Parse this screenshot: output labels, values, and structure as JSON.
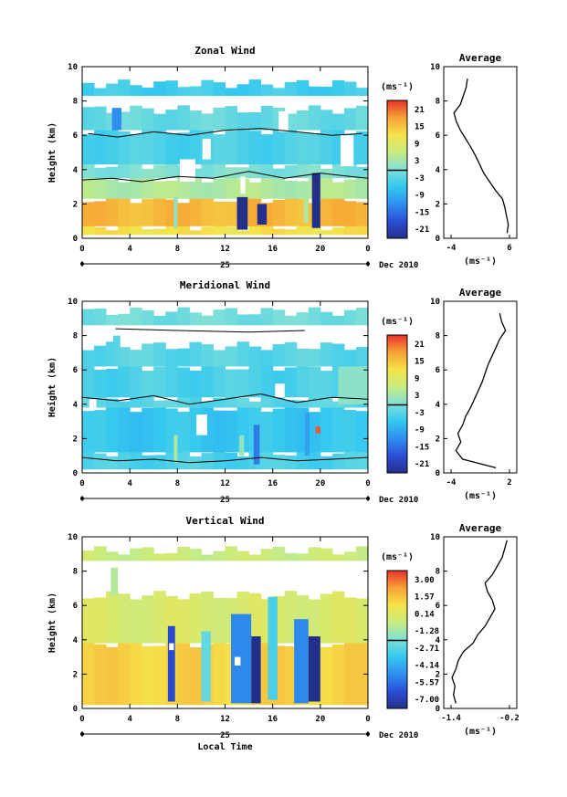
{
  "figure": {
    "date_label": "Dec 2010",
    "day_label": "25",
    "xlabel_bottom": "Local Time",
    "ylabel": "Height (km)",
    "x_ticks": [
      "0",
      "4",
      "8",
      "12",
      "16",
      "20",
      "0"
    ],
    "y_ticks": [
      "0",
      "2",
      "4",
      "6",
      "8",
      "10"
    ],
    "unit_label": "(ms⁻¹)",
    "avg_title": "Average"
  },
  "chart_data": [
    {
      "type": "heatmap",
      "title": "Zonal Wind",
      "xlabel": "",
      "ylabel": "Height (km)",
      "xlim": [
        0,
        24
      ],
      "ylim": [
        0,
        10
      ],
      "colorbar": {
        "unit": "(ms⁻¹)",
        "ticks": [
          "21",
          "15",
          "9",
          "3",
          "-3",
          "-9",
          "-15",
          "-21"
        ],
        "range": [
          -24,
          24
        ]
      },
      "layers": [
        {
          "y0": 0.2,
          "y1": 0.7,
          "value": 12
        },
        {
          "y0": 0.7,
          "y1": 2.3,
          "value": 16
        },
        {
          "y0": 2.3,
          "y1": 3.5,
          "value": 4
        },
        {
          "y0": 3.5,
          "y1": 4.3,
          "value": 0
        },
        {
          "y0": 4.3,
          "y1": 6.3,
          "value": -4
        },
        {
          "y0": 6.3,
          "y1": 7.5,
          "value": -2
        },
        {
          "y0": 8.3,
          "y1": 9.0,
          "value": -5
        }
      ],
      "features": [
        {
          "x": 2.5,
          "x1": 3.3,
          "y0": 6.3,
          "y1": 7.6,
          "value": -12
        },
        {
          "x": 7.7,
          "x1": 8.0,
          "y0": 0.6,
          "y1": 2.4,
          "value": 1
        },
        {
          "x": 13.0,
          "x1": 13.9,
          "y0": 0.5,
          "y1": 2.4,
          "value": -24
        },
        {
          "x": 14.7,
          "x1": 15.5,
          "y0": 0.8,
          "y1": 2.0,
          "value": -24
        },
        {
          "x": 19.3,
          "x1": 20.0,
          "y0": 0.6,
          "y1": 3.8,
          "value": -24
        },
        {
          "x": 18.6,
          "x1": 19.0,
          "y0": 0.9,
          "y1": 2.4,
          "value": 4
        }
      ],
      "gaps": [
        {
          "x": 8.2,
          "x1": 9.5,
          "y0": 3.3,
          "y1": 4.6
        },
        {
          "x": 10.1,
          "x1": 10.8,
          "y0": 4.6,
          "y1": 5.8
        },
        {
          "x": 13.3,
          "x1": 13.7,
          "y0": 2.6,
          "y1": 3.6
        },
        {
          "x": 16.5,
          "x1": 17.3,
          "y0": 6.2,
          "y1": 7.4
        },
        {
          "x": 21.7,
          "x1": 22.8,
          "y0": 4.2,
          "y1": 6.0
        }
      ],
      "contours": [
        {
          "x": [
            0.0,
            2.5,
            5.0,
            8.0,
            11.0,
            14.0,
            17.0,
            20.0,
            22.5,
            24.0
          ],
          "y": [
            3.4,
            3.5,
            3.3,
            3.6,
            3.5,
            3.9,
            3.5,
            3.8,
            3.6,
            3.5
          ]
        },
        {
          "x": [
            0.5,
            3.0,
            6.0,
            9.0,
            12.0,
            15.0,
            18.0,
            21.0,
            23.5
          ],
          "y": [
            6.1,
            5.9,
            6.2,
            6.0,
            6.3,
            6.4,
            6.2,
            6.0,
            6.1
          ]
        }
      ],
      "profile": {
        "xlim": [
          -4,
          6
        ],
        "xticks": [
          "-4",
          "6"
        ],
        "heights": [
          0.3,
          0.8,
          1.3,
          1.8,
          2.3,
          2.8,
          3.3,
          3.8,
          4.3,
          4.8,
          5.3,
          5.8,
          6.3,
          6.8,
          7.3,
          7.8,
          8.3,
          8.8,
          9.3
        ],
        "values": [
          5.6,
          5.8,
          5.5,
          5.2,
          4.8,
          3.6,
          2.6,
          1.6,
          0.9,
          0.2,
          -0.6,
          -1.5,
          -2.4,
          -3.1,
          -3.5,
          -2.4,
          -1.9,
          -1.4,
          -1.2
        ]
      }
    },
    {
      "type": "heatmap",
      "title": "Meridional Wind",
      "xlabel": "",
      "ylabel": "Height (km)",
      "xlim": [
        0,
        24
      ],
      "ylim": [
        0,
        10
      ],
      "colorbar": {
        "unit": "(ms⁻¹)",
        "ticks": [
          "21",
          "15",
          "9",
          "3",
          "-3",
          "-9",
          "-15",
          "-21"
        ],
        "range": [
          -24,
          24
        ]
      },
      "layers": [
        {
          "y0": 0.2,
          "y1": 1.2,
          "value": -4
        },
        {
          "y0": 1.2,
          "y1": 3.8,
          "value": -6
        },
        {
          "y0": 3.8,
          "y1": 4.4,
          "value": -3
        },
        {
          "y0": 4.4,
          "y1": 6.2,
          "value": -4
        },
        {
          "y0": 6.2,
          "y1": 7.4,
          "value": -3
        },
        {
          "y0": 8.6,
          "y1": 9.4,
          "value": -1
        }
      ],
      "features": [
        {
          "x": 2.6,
          "x1": 3.2,
          "y0": 6.2,
          "y1": 8.0,
          "value": -3
        },
        {
          "x": 7.7,
          "x1": 8.0,
          "y0": 0.6,
          "y1": 2.2,
          "value": 4
        },
        {
          "x": 13.2,
          "x1": 13.6,
          "y0": 1.0,
          "y1": 2.2,
          "value": 2
        },
        {
          "x": 14.4,
          "x1": 14.9,
          "y0": 0.5,
          "y1": 2.8,
          "value": -14
        },
        {
          "x": 18.7,
          "x1": 19.1,
          "y0": 1.0,
          "y1": 3.5,
          "value": -10
        },
        {
          "x": 19.6,
          "x1": 20.0,
          "y0": 2.3,
          "y1": 2.7,
          "value": 22
        },
        {
          "x": 21.5,
          "x1": 24.0,
          "y0": 4.0,
          "y1": 6.2,
          "value": 1
        }
      ],
      "gaps": [
        {
          "x": 0.6,
          "x1": 1.2,
          "y0": 3.8,
          "y1": 4.3
        },
        {
          "x": 9.6,
          "x1": 10.5,
          "y0": 2.2,
          "y1": 3.4
        },
        {
          "x": 16.2,
          "x1": 17.0,
          "y0": 4.4,
          "y1": 5.2
        }
      ],
      "contours": [
        {
          "x": [
            0.0,
            3.0,
            6.0,
            9.0,
            12.0,
            15.0,
            18.0,
            21.0,
            24.0
          ],
          "y": [
            0.9,
            0.7,
            0.8,
            0.6,
            0.7,
            0.9,
            0.7,
            0.8,
            0.9
          ]
        },
        {
          "x": [
            0.0,
            3.0,
            6.0,
            9.0,
            12.0,
            15.0,
            18.0,
            21.0,
            24.0
          ],
          "y": [
            4.4,
            4.2,
            4.5,
            4.0,
            4.3,
            4.6,
            4.1,
            4.4,
            4.3
          ]
        },
        {
          "x": [
            2.8,
            8.0,
            14.0,
            18.7
          ],
          "y": [
            8.4,
            8.3,
            8.2,
            8.3
          ]
        }
      ],
      "profile": {
        "xlim": [
          -4,
          2
        ],
        "xticks": [
          "-4",
          "2"
        ],
        "heights": [
          0.3,
          0.8,
          1.3,
          1.8,
          2.3,
          2.8,
          3.3,
          3.8,
          4.3,
          4.8,
          5.3,
          5.8,
          6.3,
          6.8,
          7.3,
          7.8,
          8.3,
          8.8,
          9.3
        ],
        "values": [
          0.6,
          -2.8,
          -3.5,
          -3.0,
          -3.3,
          -2.8,
          -2.5,
          -2.0,
          -1.6,
          -1.2,
          -0.8,
          -0.5,
          -0.2,
          0.2,
          0.6,
          1.0,
          1.6,
          1.2,
          1.0
        ]
      }
    },
    {
      "type": "heatmap",
      "title": "Vertical Wind",
      "xlabel": "Local Time",
      "ylabel": "Height (km)",
      "xlim": [
        0,
        24
      ],
      "ylim": [
        0,
        10
      ],
      "colorbar": {
        "unit": "(ms⁻¹)",
        "ticks": [
          "3.00",
          "1.57",
          "0.14",
          "-1.28",
          "-2.71",
          "-4.14",
          "-5.57",
          "-7.00"
        ],
        "range": [
          -7.7,
          3.7
        ]
      },
      "layers": [
        {
          "y0": 0.2,
          "y1": 3.8,
          "value": 1.2
        },
        {
          "y0": 3.8,
          "y1": 6.6,
          "value": -0.1
        },
        {
          "y0": 8.6,
          "y1": 9.2,
          "value": -0.5
        }
      ],
      "features": [
        {
          "x": 2.4,
          "x1": 3.0,
          "y0": 6.6,
          "y1": 8.2,
          "value": -1.0
        },
        {
          "x": 7.2,
          "x1": 7.8,
          "y0": 0.4,
          "y1": 4.8,
          "value": -6.5
        },
        {
          "x": 10.0,
          "x1": 10.8,
          "y0": 0.4,
          "y1": 4.5,
          "value": -2.5
        },
        {
          "x": 12.5,
          "x1": 14.2,
          "y0": 0.3,
          "y1": 5.5,
          "value": -5.0
        },
        {
          "x": 14.2,
          "x1": 15.0,
          "y0": 0.3,
          "y1": 4.2,
          "value": -7.7
        },
        {
          "x": 15.6,
          "x1": 16.4,
          "y0": 0.5,
          "y1": 6.5,
          "value": -3.0
        },
        {
          "x": 17.8,
          "x1": 19.0,
          "y0": 0.3,
          "y1": 5.2,
          "value": -5.0
        },
        {
          "x": 19.0,
          "x1": 20.0,
          "y0": 0.4,
          "y1": 4.2,
          "value": -7.7
        }
      ],
      "gaps": [
        {
          "x": 7.3,
          "x1": 7.7,
          "y0": 3.4,
          "y1": 3.8
        },
        {
          "x": 12.8,
          "x1": 13.3,
          "y0": 2.5,
          "y1": 3.0
        }
      ],
      "contours": [],
      "profile": {
        "xlim": [
          -1.4,
          -0.2
        ],
        "xticks": [
          "-1.4",
          "-0.2"
        ],
        "heights": [
          0.3,
          0.8,
          1.3,
          1.8,
          2.3,
          2.8,
          3.3,
          3.8,
          4.3,
          4.8,
          5.3,
          5.8,
          6.3,
          6.8,
          7.3,
          7.8,
          8.3,
          8.8,
          9.3,
          9.8
        ],
        "values": [
          -1.3,
          -1.35,
          -1.32,
          -1.38,
          -1.3,
          -1.25,
          -1.15,
          -0.95,
          -0.85,
          -0.7,
          -0.6,
          -0.5,
          -0.55,
          -0.65,
          -0.7,
          -0.55,
          -0.45,
          -0.35,
          -0.3,
          -0.25
        ]
      }
    }
  ]
}
